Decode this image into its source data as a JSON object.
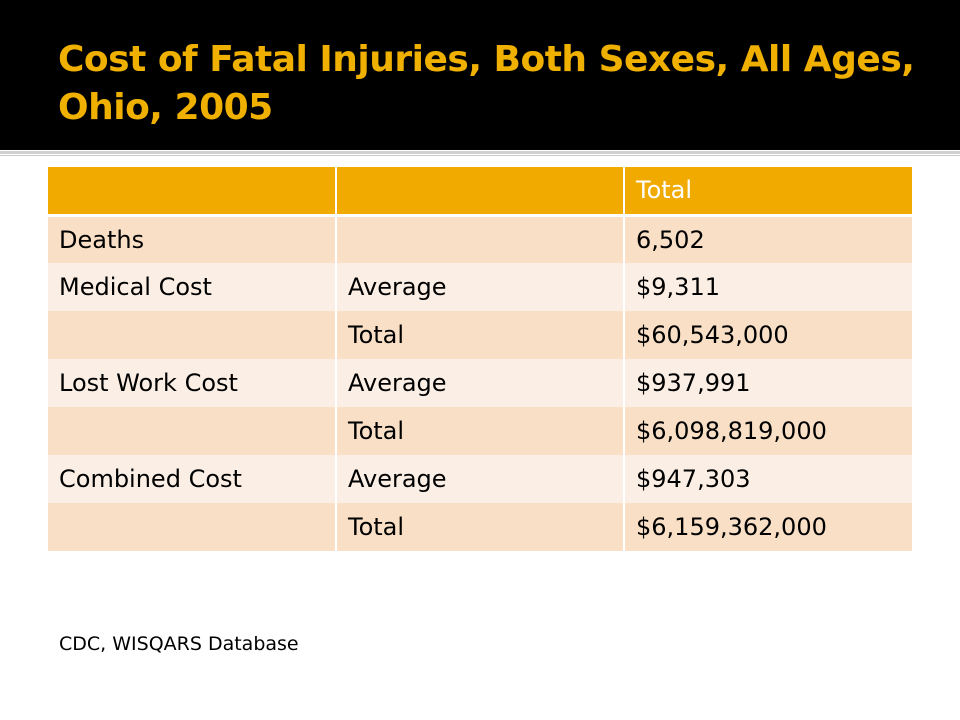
{
  "slide": {
    "title": "Cost of Fatal Injuries, Both Sexes, All Ages, Ohio, 2005",
    "source": "CDC, WISQARS Database"
  },
  "table": {
    "header": [
      "",
      "",
      "Total"
    ],
    "rows": [
      [
        "Deaths",
        "",
        "6,502"
      ],
      [
        "Medical Cost",
        "Average",
        "$9,311"
      ],
      [
        "",
        "Total",
        "$60,543,000"
      ],
      [
        "Lost Work Cost",
        "Average",
        "$937,991"
      ],
      [
        "",
        "Total",
        "$6,098,819,000"
      ],
      [
        "Combined Cost",
        "Average",
        "$947,303"
      ],
      [
        "",
        "Total",
        "$6,159,362,000"
      ]
    ]
  },
  "colors": {
    "title_bar": "#000000",
    "title_text": "#f0b000",
    "header_fill": "#f0aa00",
    "row_dark": "#f8dfc5",
    "row_light": "#fbefe5"
  }
}
